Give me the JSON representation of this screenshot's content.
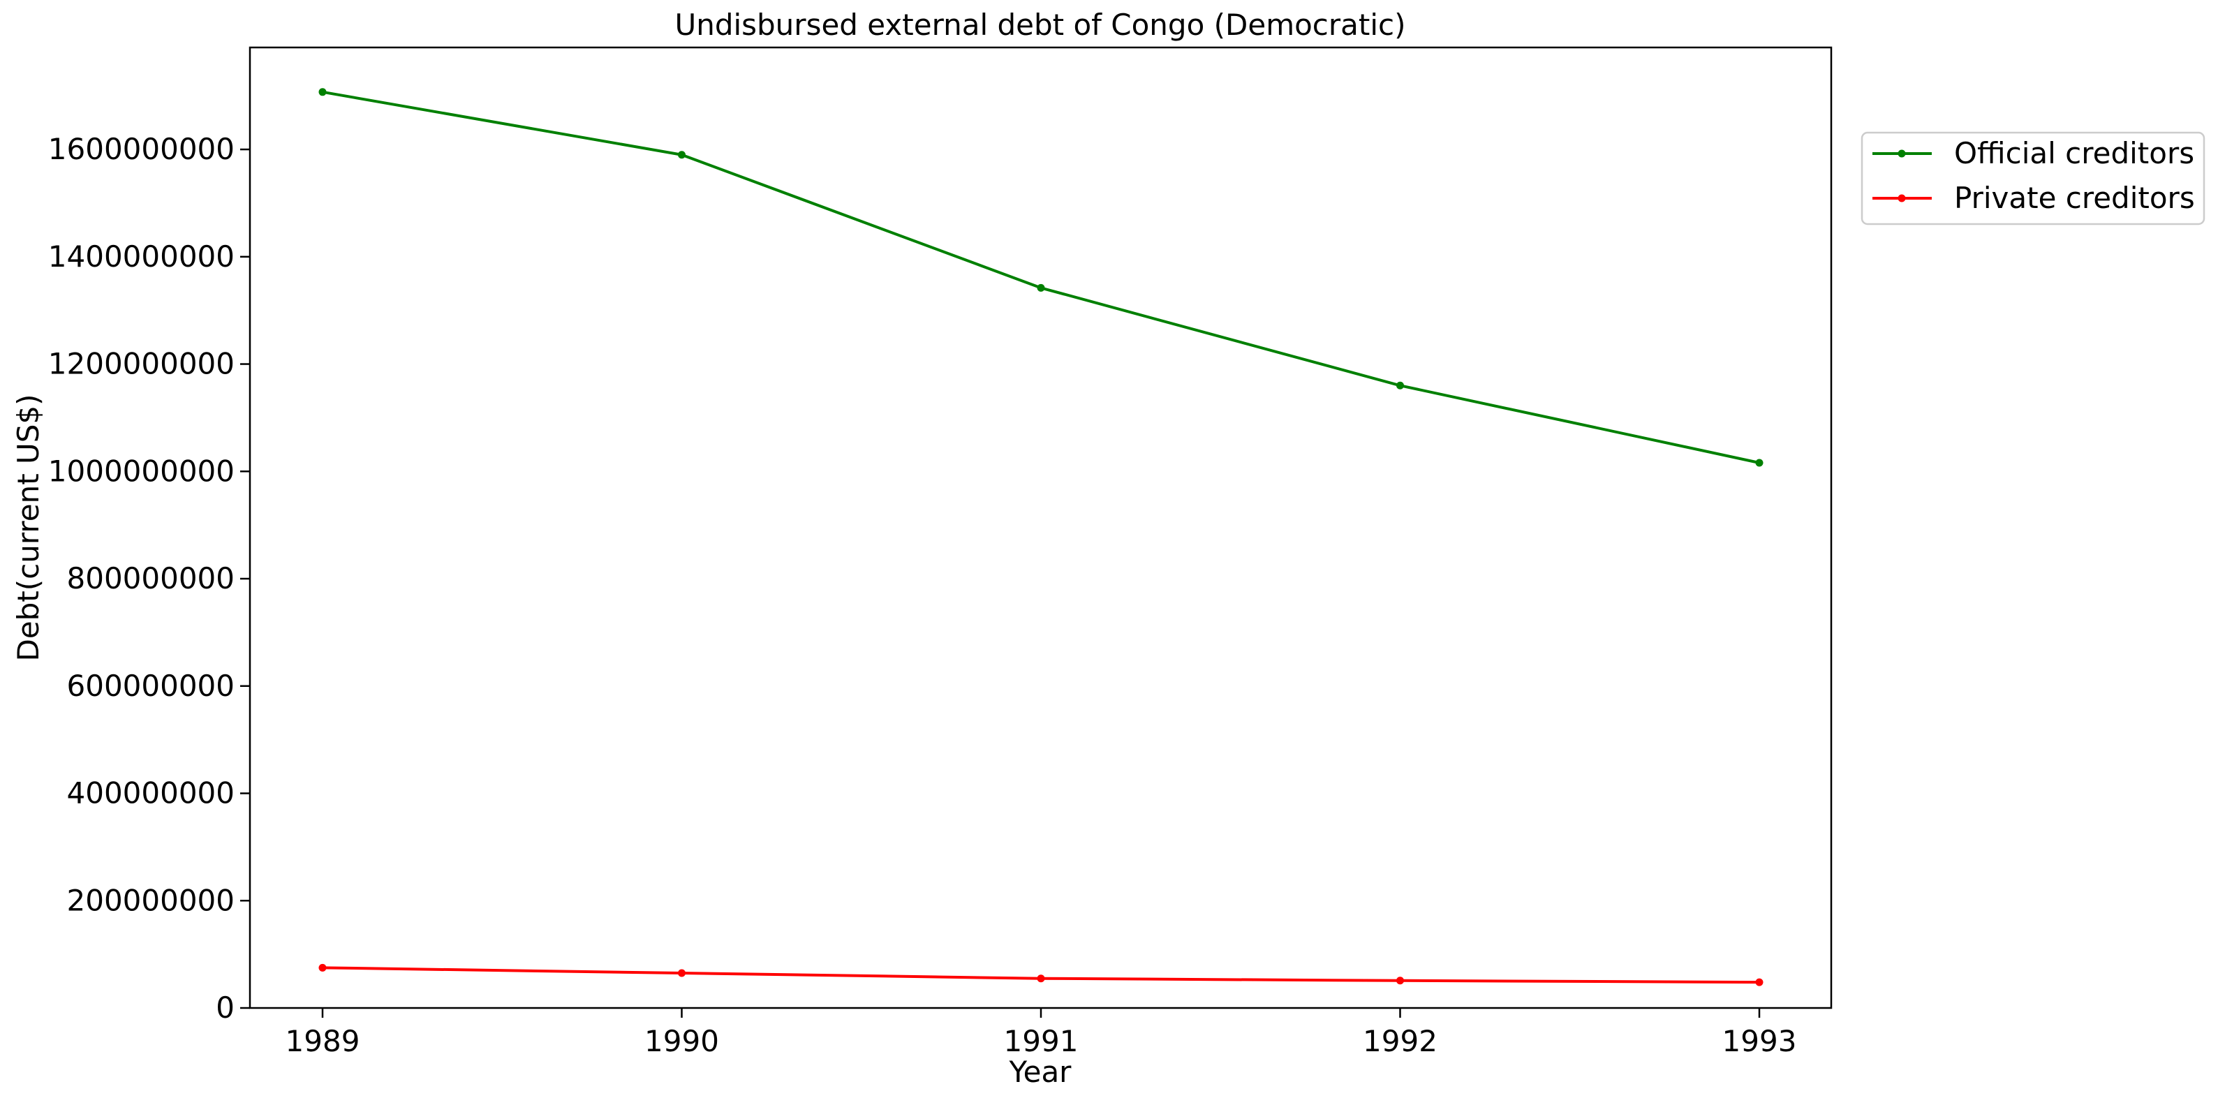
{
  "chart_data": {
    "type": "line",
    "title": "Undisbursed external debt of Congo (Democratic)",
    "xlabel": "Year",
    "ylabel": "Debt(current US$)",
    "x": [
      "1989",
      "1990",
      "1991",
      "1992",
      "1993"
    ],
    "ylim": [
      0,
      1790000000
    ],
    "yticks": [
      "0",
      "200000000",
      "400000000",
      "600000000",
      "800000000",
      "1000000000",
      "1200000000",
      "1400000000",
      "1600000000"
    ],
    "grid": false,
    "legend_position": "top-right, outside plot area",
    "series": [
      {
        "name": "Official creditors",
        "color": "#008000",
        "values": [
          1707000000,
          1590000000,
          1342000000,
          1160000000,
          1016000000
        ]
      },
      {
        "name": "Private creditors",
        "color": "#ff0000",
        "values": [
          75000000,
          65000000,
          55000000,
          51000000,
          48000000
        ]
      }
    ]
  }
}
